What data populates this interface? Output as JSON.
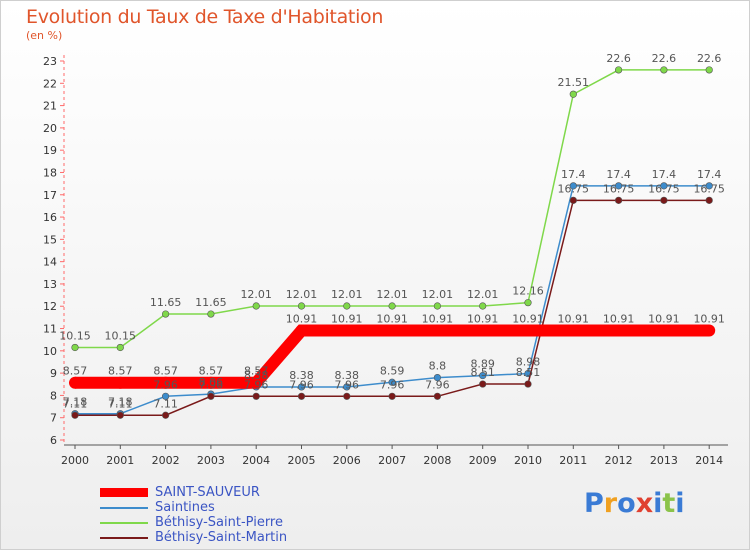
{
  "title": "Evolution du Taux de Taxe d'Habitation",
  "unit": "(en %)",
  "logo": {
    "text": "Proxiti",
    "colors": [
      "#3a7bd5",
      "#f0a020",
      "#3a7bd5",
      "#e04030",
      "#3a7bd5",
      "#8bc34a",
      "#3a7bd5"
    ]
  },
  "chart_data": {
    "type": "line",
    "title": "Evolution du Taux de Taxe d'Habitation",
    "ylabel": "(en %)",
    "xlabel": "",
    "categories": [
      "2000",
      "2001",
      "2002",
      "2003",
      "2004",
      "2005",
      "2006",
      "2007",
      "2008",
      "2009",
      "2010",
      "2011",
      "2012",
      "2013",
      "2014"
    ],
    "ylim": [
      6,
      23
    ],
    "yticks": [
      6,
      7,
      8,
      9,
      10,
      11,
      12,
      13,
      14,
      15,
      16,
      17,
      18,
      19,
      20,
      21,
      22,
      23
    ],
    "grid": false,
    "legend_position": "bottom-left",
    "series": [
      {
        "name": "SAINT-SAUVEUR",
        "color": "#ff0000",
        "values": [
          8.57,
          8.57,
          8.57,
          8.57,
          8.57,
          10.91,
          10.91,
          10.91,
          10.91,
          10.91,
          10.91,
          10.91,
          10.91,
          10.91,
          10.91
        ],
        "labels": [
          "8.57",
          "8.57",
          "8.57",
          "8.57",
          "8.57",
          "10.91",
          "10.91",
          "10.91",
          "10.91",
          "10.91",
          "10.91",
          "10.91",
          "10.91",
          "10.91",
          "10.91"
        ]
      },
      {
        "name": "Saintines",
        "color": "#3d8ccc",
        "values": [
          7.18,
          7.18,
          7.96,
          8.06,
          8.38,
          8.38,
          8.38,
          8.59,
          8.8,
          8.89,
          8.98,
          17.4,
          17.4,
          17.4,
          17.4
        ],
        "labels": [
          "7.18",
          "7.18",
          "7.96",
          "8.06",
          "8.38",
          "8.38",
          "8.38",
          "8.59",
          "8.8",
          "8.89",
          "8.98",
          "17.4",
          "17.4",
          "17.4",
          "17.4"
        ]
      },
      {
        "name": "Béthisy-Saint-Pierre",
        "color": "#7fd84a",
        "values": [
          10.15,
          10.15,
          11.65,
          11.65,
          12.01,
          12.01,
          12.01,
          12.01,
          12.01,
          12.01,
          12.16,
          21.51,
          22.6,
          22.6,
          22.6
        ],
        "labels": [
          "10.15",
          "10.15",
          "11.65",
          "11.65",
          "12.01",
          "12.01",
          "12.01",
          "12.01",
          "12.01",
          "12.01",
          "12.16",
          "21.51",
          "22.6",
          "22.6",
          "22.6"
        ]
      },
      {
        "name": "Béthisy-Saint-Martin",
        "color": "#7a1a1a",
        "values": [
          7.11,
          7.11,
          7.11,
          7.96,
          7.96,
          7.96,
          7.96,
          7.96,
          7.96,
          8.51,
          8.51,
          16.75,
          16.75,
          16.75,
          16.75
        ],
        "labels": [
          "7.11",
          "7.11",
          "7.11",
          "7.96",
          "7.96",
          "7.96",
          "7.96",
          "7.96",
          "7.96",
          "8.51",
          "8.51",
          "16.75",
          "16.75",
          "16.75",
          "16.75"
        ]
      }
    ]
  }
}
